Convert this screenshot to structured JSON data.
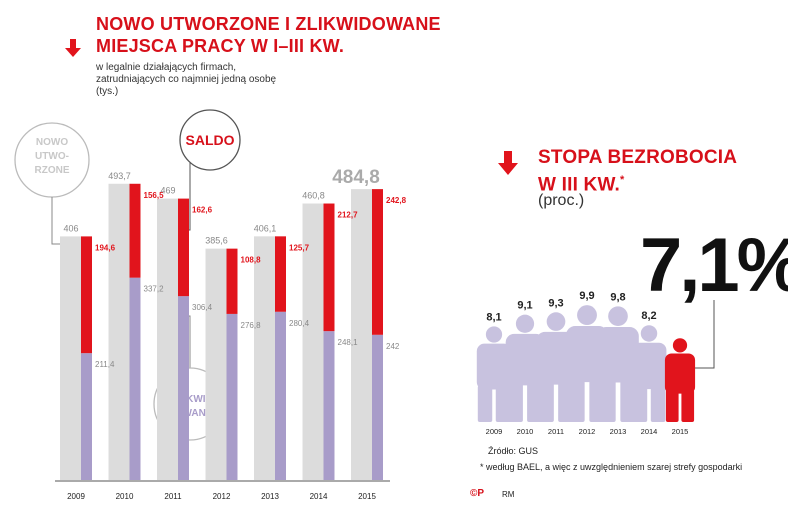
{
  "left": {
    "title_line1": "NOWO UTWORZONE I ZLIKWIDOWANE",
    "title_line2": "MIEJSCA PRACY W I–III KW.",
    "subtitle_line1": "w legalnie działających firmach,",
    "subtitle_line2": "zatrudniających co najmniej jedną osobę",
    "unit": "(tys.)",
    "label_new_1": "NOWO",
    "label_new_2": "UTWO-",
    "label_new_3": "RZONE",
    "label_saldo": "SALDO",
    "label_liq_1": "ZLIKWI-",
    "label_liq_2": "DOWANE"
  },
  "right": {
    "title_line1": "STOPA BEZROBOCIA",
    "title_line2": "W III KW.",
    "title_mark": "*",
    "unit": "(proc.)",
    "big_value": "7,1%",
    "source": "Źródło: GUS",
    "footnote": "* według BAEL, a więc z uwzględnieniem szarej strefy gospodarki",
    "credit_mark": "©P",
    "credit": "RM"
  },
  "colors": {
    "red": "#e1141c",
    "gray_bar": "#dcdcdc",
    "lavender": "#a89cc9",
    "person": "#c8c2df",
    "title_red": "#d7101a"
  },
  "icons": [
    "down-arrow-icon",
    "person-icon"
  ],
  "chart_data": [
    {
      "type": "bar",
      "categories": [
        "2009",
        "2010",
        "2011",
        "2012",
        "2013",
        "2014",
        "2015"
      ],
      "series": [
        {
          "name": "NOWO UTWORZONE",
          "values": [
            406,
            493.7,
            469,
            385.6,
            406.1,
            460.8,
            484.8
          ],
          "labels": [
            "406",
            "493,7",
            "469",
            "385,6",
            "406,1",
            "460,8",
            "484,8"
          ]
        },
        {
          "name": "ZLIKWIDOWANE",
          "values": [
            211.4,
            337.2,
            306.4,
            276.8,
            280.4,
            248.1,
            242
          ],
          "labels": [
            "211,4",
            "337,2",
            "306,4",
            "276,8",
            "280,4",
            "248,1",
            "242"
          ]
        },
        {
          "name": "SALDO",
          "values": [
            194.6,
            156.5,
            162.6,
            108.8,
            125.7,
            212.7,
            242.8
          ],
          "labels": [
            "194,6",
            "156,5",
            "162,6",
            "108,8",
            "125,7",
            "212,7",
            "242,8"
          ]
        }
      ]
    },
    {
      "type": "bar",
      "categories": [
        "2009",
        "2010",
        "2011",
        "2012",
        "2013",
        "2014",
        "2015"
      ],
      "values": [
        8.1,
        9.1,
        9.3,
        9.9,
        9.8,
        8.2,
        7.1
      ],
      "labels": [
        "8,1",
        "9,1",
        "9,3",
        "9,9",
        "9,8",
        "8,2",
        "7,1%"
      ]
    }
  ]
}
